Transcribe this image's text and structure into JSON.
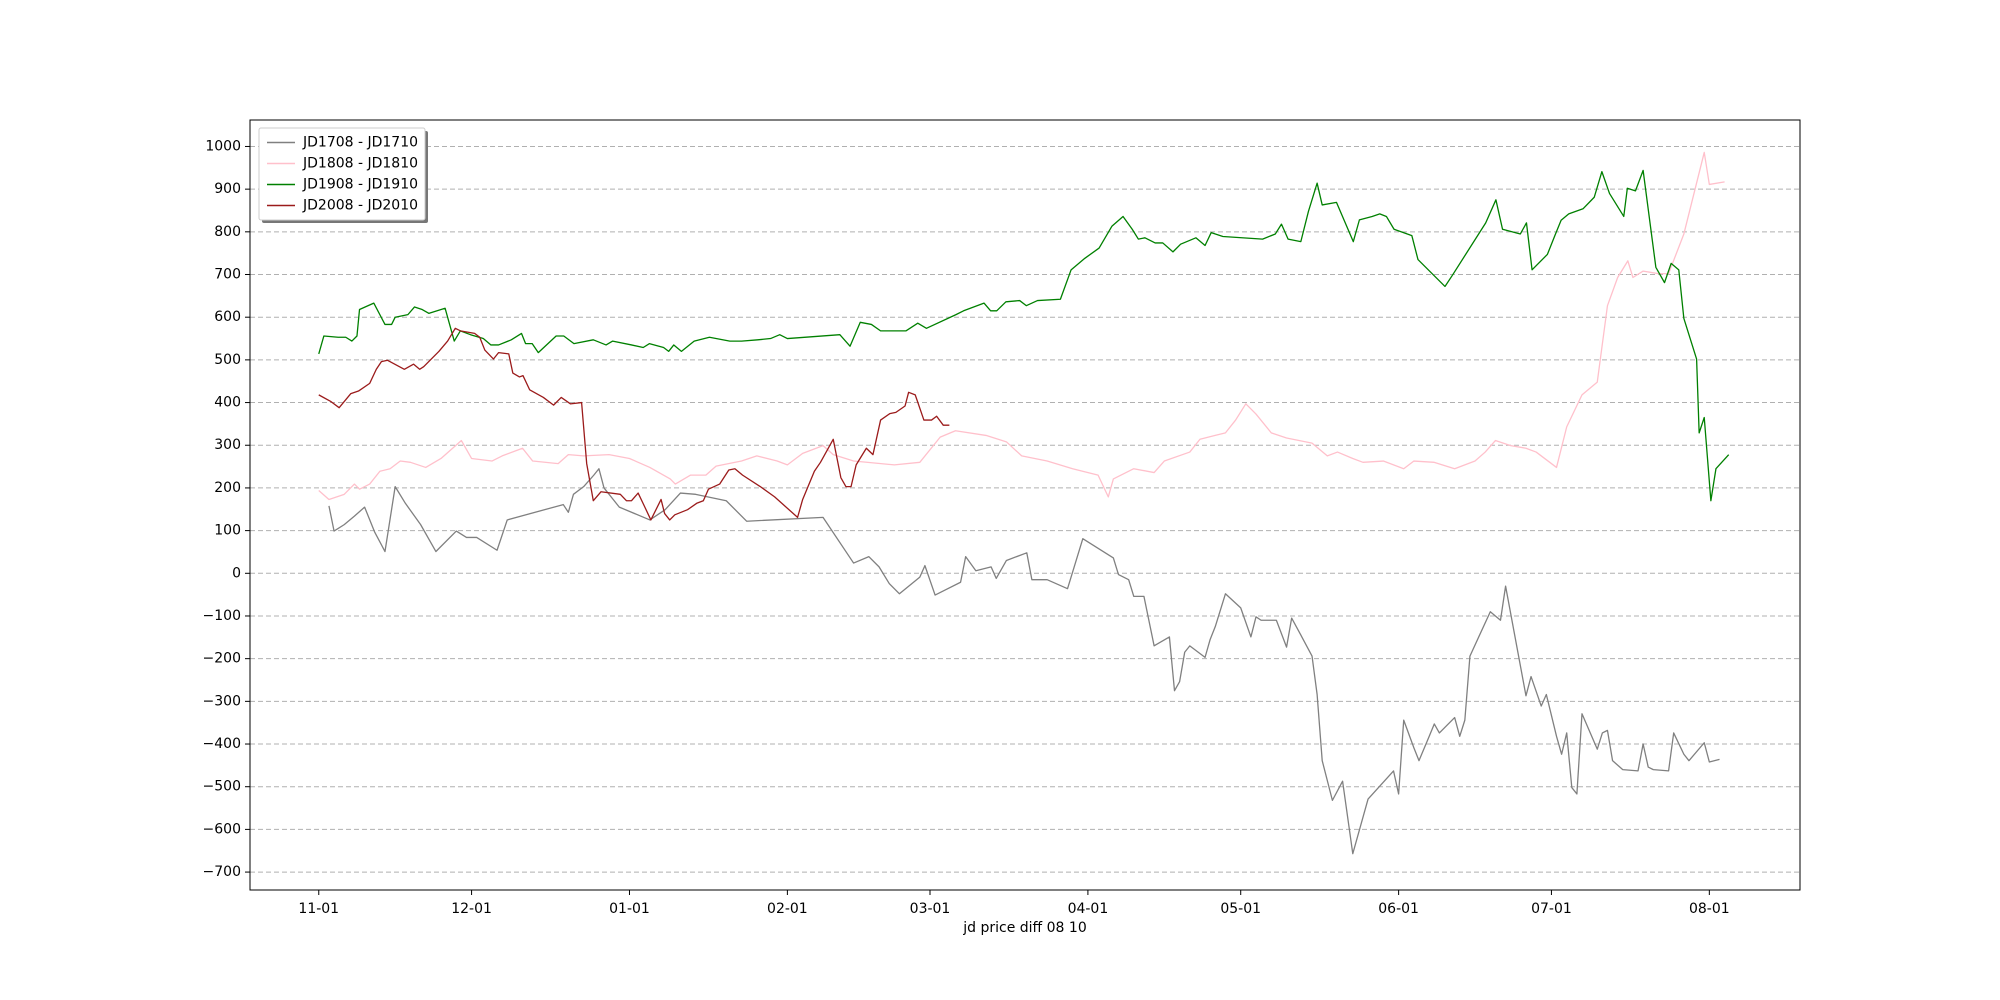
{
  "chart_data": {
    "type": "line",
    "x_label": "jd price diff 08 10",
    "xlim": [
      -13.5,
      290.8
    ],
    "ylim": [
      -742,
      1062
    ],
    "xticks": [
      {
        "value": 0,
        "label": "11-01"
      },
      {
        "value": 30,
        "label": "12-01"
      },
      {
        "value": 61,
        "label": "01-01"
      },
      {
        "value": 92,
        "label": "02-01"
      },
      {
        "value": 120,
        "label": "03-01"
      },
      {
        "value": 151,
        "label": "04-01"
      },
      {
        "value": 181,
        "label": "05-01"
      },
      {
        "value": 212,
        "label": "06-01"
      },
      {
        "value": 242,
        "label": "07-01"
      },
      {
        "value": 273,
        "label": "08-01"
      }
    ],
    "yticks": [
      {
        "value": -700,
        "label": "−700"
      },
      {
        "value": -600,
        "label": "−600"
      },
      {
        "value": -500,
        "label": "−500"
      },
      {
        "value": -400,
        "label": "−400"
      },
      {
        "value": -300,
        "label": "−300"
      },
      {
        "value": -200,
        "label": "−200"
      },
      {
        "value": -100,
        "label": "−100"
      },
      0,
      100,
      200,
      300,
      400,
      500,
      600,
      700,
      800,
      900,
      1000
    ],
    "grid": "y",
    "legend": "upper-left",
    "series": [
      {
        "name": "JD1708 - JD1710",
        "color": "#808080",
        "x": [
          2,
          3,
          5,
          7,
          9,
          11,
          13,
          15,
          17,
          20,
          23,
          27,
          29,
          31,
          35,
          37,
          48,
          49,
          50,
          52,
          54,
          55,
          56,
          59,
          65,
          68,
          71,
          74,
          80,
          84,
          99,
          105,
          108,
          110,
          112,
          114,
          118,
          119,
          121,
          123,
          126,
          127,
          129,
          132,
          133,
          135,
          139,
          140,
          143,
          147,
          150,
          156,
          157,
          159,
          160,
          162,
          164,
          167,
          168,
          169,
          170,
          171,
          174,
          175,
          176,
          178,
          181,
          183,
          184,
          185,
          188,
          190,
          191,
          193,
          195,
          196,
          197,
          199,
          201,
          203,
          206,
          211,
          212,
          213,
          215,
          216,
          218,
          219,
          220,
          223,
          224,
          225,
          226,
          230,
          232,
          233,
          237,
          238,
          240,
          241,
          243,
          244,
          245,
          246,
          247,
          248,
          251,
          252,
          253,
          254,
          256,
          259,
          260,
          261,
          262,
          265,
          266,
          268,
          269,
          272,
          273,
          275
        ],
        "values": [
          158,
          99,
          114,
          134,
          155,
          96,
          51,
          203,
          164,
          114,
          51,
          99,
          84,
          84,
          54,
          125,
          161,
          143,
          185,
          203,
          230,
          245,
          200,
          155,
          125,
          149,
          188,
          185,
          170,
          122,
          131,
          24,
          39,
          15,
          -24,
          -48,
          -9,
          18,
          -51,
          -39,
          -21,
          39,
          6,
          15,
          -12,
          30,
          48,
          -15,
          -15,
          -36,
          81,
          36,
          -3,
          -15,
          -54,
          -54,
          -170,
          -149,
          -275,
          -254,
          -185,
          -170,
          -197,
          -155,
          -125,
          -48,
          -81,
          -149,
          -102,
          -110,
          -110,
          -173,
          -105,
          -149,
          -194,
          -284,
          -439,
          -532,
          -487,
          -657,
          -529,
          -463,
          -517,
          -344,
          -409,
          -439,
          -382,
          -353,
          -374,
          -338,
          -382,
          -344,
          -194,
          -90,
          -110,
          -30,
          -287,
          -242,
          -311,
          -284,
          -382,
          -424,
          -374,
          -502,
          -517,
          -329,
          -412,
          -374,
          -368,
          -439,
          -460,
          -463,
          -400,
          -454,
          -460,
          -463,
          -374,
          -424,
          -439,
          -397,
          -442,
          -436
        ]
      },
      {
        "name": "JD1808 - JD1810",
        "color": "#ffc0cb",
        "x": [
          0,
          2,
          5,
          7,
          8,
          10,
          12,
          14,
          16,
          18,
          21,
          24,
          28,
          30,
          34,
          36,
          40,
          42,
          47,
          49,
          52,
          57,
          61,
          65,
          69,
          70,
          73,
          76,
          78,
          83,
          86,
          90,
          92,
          95,
          99,
          101,
          105,
          113,
          118,
          122,
          125,
          131,
          135,
          138,
          143,
          148,
          153,
          155,
          156,
          160,
          164,
          166,
          171,
          173,
          176,
          178,
          180,
          182,
          184,
          187,
          190,
          195,
          198,
          200,
          203,
          205,
          209,
          213,
          215,
          219,
          223,
          227,
          229,
          231,
          234,
          237,
          239,
          243,
          245,
          248,
          251,
          253,
          255,
          257,
          258,
          260,
          263,
          265,
          268,
          272,
          273,
          276
        ],
        "values": [
          194,
          173,
          185,
          209,
          197,
          209,
          239,
          245,
          263,
          260,
          248,
          269,
          311,
          269,
          263,
          275,
          293,
          263,
          257,
          278,
          275,
          278,
          269,
          248,
          221,
          209,
          230,
          230,
          251,
          263,
          275,
          263,
          254,
          281,
          299,
          278,
          263,
          254,
          260,
          319,
          334,
          323,
          308,
          275,
          263,
          245,
          230,
          179,
          221,
          245,
          236,
          263,
          284,
          314,
          323,
          329,
          359,
          397,
          373,
          329,
          317,
          305,
          275,
          284,
          269,
          260,
          263,
          245,
          263,
          260,
          245,
          263,
          284,
          311,
          299,
          293,
          284,
          248,
          343,
          418,
          448,
          627,
          693,
          732,
          693,
          708,
          702,
          702,
          795,
          986,
          911,
          917
        ]
      },
      {
        "name": "JD1908 - JD1910",
        "color": "#008000",
        "x": [
          0.0,
          1.0,
          3.8,
          5.3,
          6.5,
          7.5,
          8.0,
          10.8,
          13.0,
          14.3,
          15.0,
          17.5,
          18.8,
          20.3,
          21.6,
          24.8,
          26.6,
          27.8,
          29.8,
          32.3,
          33.8,
          35.3,
          37.8,
          39.8,
          40.6,
          41.9,
          43.1,
          46.6,
          48.1,
          50.1,
          53.9,
          56.4,
          57.7,
          61.4,
          63.7,
          64.9,
          67.7,
          68.7,
          69.7,
          71.2,
          73.7,
          76.7,
          80.7,
          83.0,
          86.2,
          88.7,
          90.5,
          92.0,
          102.3,
          104.3,
          106.3,
          108.5,
          110.3,
          115.3,
          117.6,
          119.3,
          125.1,
          126.6,
          130.6,
          131.9,
          133.1,
          134.9,
          137.6,
          138.9,
          141.1,
          145.6,
          147.7,
          150.4,
          153.2,
          155.7,
          157.9,
          159.7,
          160.9,
          162.2,
          164.2,
          165.7,
          167.7,
          169.2,
          172.2,
          174.0,
          175.2,
          177.5,
          185.3,
          187.8,
          189.0,
          190.3,
          192.8,
          194.3,
          196.0,
          197.0,
          199.8,
          203.1,
          204.3,
          206.8,
          208.3,
          209.6,
          211.1,
          214.6,
          215.8,
          221.1,
          222.6,
          229.1,
          231.1,
          232.4,
          235.9,
          237.1,
          238.2,
          241.2,
          242.7,
          243.9,
          245.4,
          248.2,
          250.4,
          251.9,
          253.4,
          256.2,
          256.9,
          258.5,
          260.0,
          262.5,
          264.2,
          265.5,
          267.0,
          268.0,
          270.5,
          271.0,
          272.0,
          273.3,
          274.3,
          276.8
        ],
        "values": [
          514,
          556,
          553,
          553,
          544,
          556,
          618,
          633,
          583,
          583,
          600,
          606,
          624,
          618,
          609,
          621,
          544,
          568,
          559,
          550,
          535,
          535,
          547,
          562,
          538,
          538,
          517,
          556,
          556,
          538,
          547,
          535,
          544,
          535,
          529,
          538,
          529,
          520,
          535,
          520,
          544,
          553,
          544,
          544,
          547,
          550,
          559,
          550,
          559,
          532,
          588,
          583,
          568,
          568,
          586,
          574,
          606,
          615,
          633,
          615,
          615,
          636,
          639,
          627,
          639,
          642,
          711,
          738,
          762,
          813,
          836,
          806,
          783,
          786,
          774,
          774,
          753,
          771,
          786,
          768,
          798,
          789,
          783,
          795,
          818,
          783,
          777,
          848,
          914,
          863,
          869,
          777,
          828,
          836,
          842,
          836,
          806,
          791,
          735,
          672,
          699,
          821,
          875,
          806,
          795,
          821,
          711,
          747,
          792,
          827,
          842,
          854,
          881,
          941,
          890,
          836,
          902,
          896,
          944,
          717,
          681,
          726,
          711,
          597,
          502,
          329,
          365,
          170,
          245,
          278
        ]
      },
      {
        "name": "JD2008 - JD2010",
        "color": "#9b1b1b",
        "x": [
          0.0,
          2.3,
          4.0,
          6.3,
          7.8,
          10.0,
          11.3,
          12.3,
          13.5,
          16.8,
          18.6,
          19.8,
          20.6,
          23.6,
          25.3,
          26.8,
          27.8,
          30.6,
          31.6,
          32.6,
          34.3,
          35.3,
          37.3,
          38.1,
          39.4,
          40.1,
          41.4,
          44.1,
          46.1,
          47.6,
          49.4,
          51.6,
          52.6,
          53.9,
          55.4,
          59.2,
          60.4,
          61.4,
          62.7,
          63.9,
          65.2,
          67.2,
          67.9,
          68.9,
          69.9,
          72.4,
          74.2,
          75.5,
          76.5,
          78.7,
          80.5,
          81.7,
          83.2,
          86.7,
          89.5,
          94.0,
          95.0,
          97.3,
          98.5,
          101.0,
          102.5,
          103.5,
          104.5,
          105.5,
          107.5,
          108.8,
          110.3,
          112.1,
          113.3,
          115.1,
          115.8,
          117.1,
          118.8,
          120.3,
          121.3,
          122.6,
          123.8
        ],
        "values": [
          418,
          403,
          388,
          421,
          427,
          445,
          478,
          496,
          499,
          478,
          490,
          478,
          484,
          520,
          544,
          574,
          568,
          562,
          553,
          523,
          502,
          517,
          514,
          469,
          460,
          463,
          430,
          412,
          394,
          412,
          397,
          400,
          257,
          170,
          191,
          185,
          170,
          170,
          188,
          158,
          125,
          173,
          140,
          125,
          137,
          149,
          164,
          170,
          197,
          209,
          242,
          245,
          230,
          203,
          179,
          131,
          173,
          239,
          260,
          314,
          224,
          203,
          203,
          254,
          293,
          278,
          359,
          374,
          377,
          392,
          424,
          418,
          359,
          359,
          368,
          347,
          347
        ]
      }
    ]
  }
}
